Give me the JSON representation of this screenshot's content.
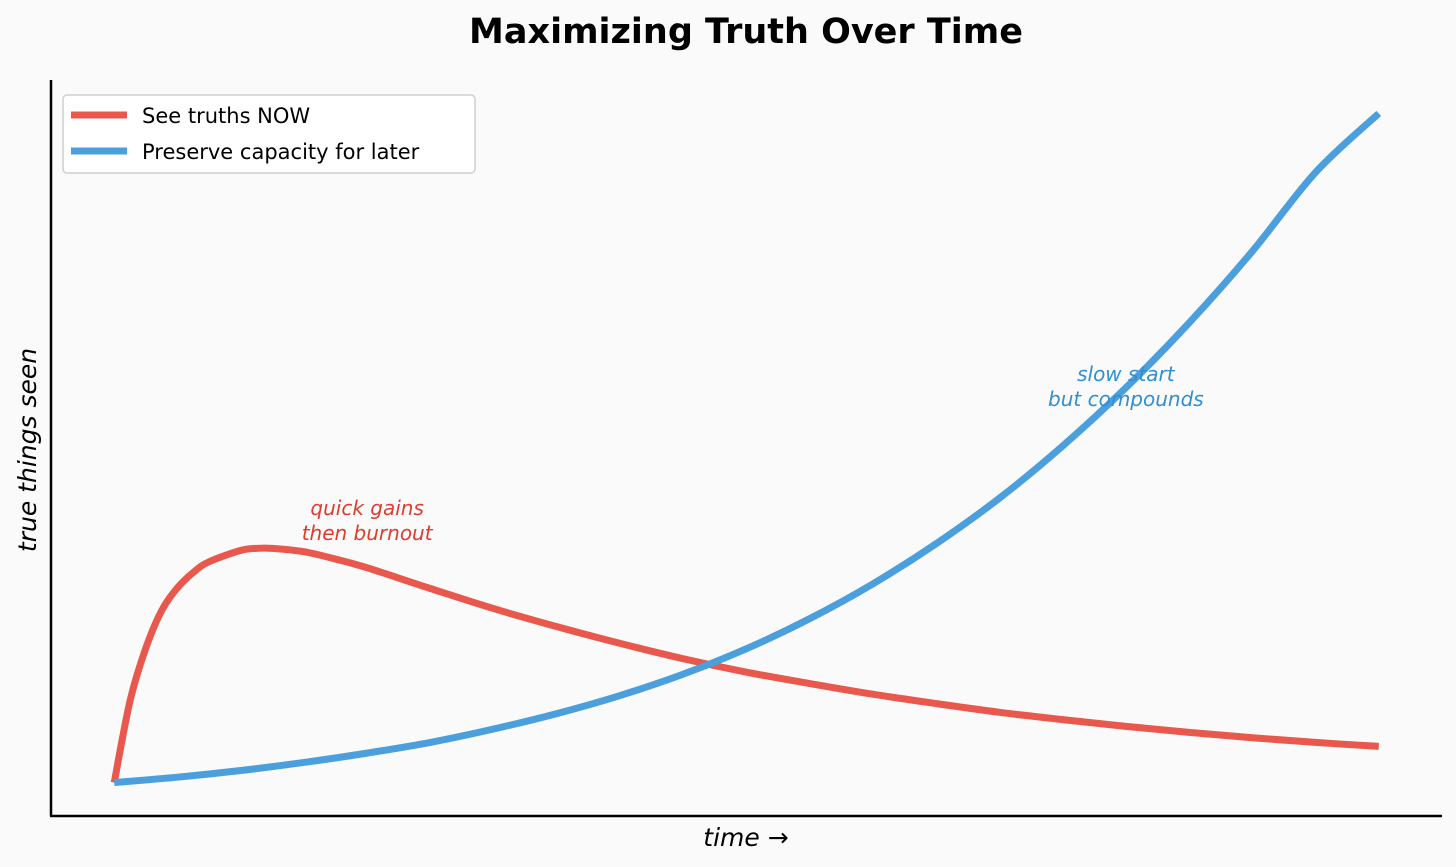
{
  "chart_data": {
    "type": "line",
    "title": "Maximizing Truth Over Time",
    "xlabel": "time →",
    "ylabel": "true things seen",
    "xlim": [
      -0.5,
      10.5
    ],
    "ylim": [
      -0.5,
      10.5
    ],
    "grid": false,
    "ticks": "none",
    "legend_position": "top-left",
    "series": [
      {
        "name": "See truths NOW",
        "color": "#e8584c",
        "x": [
          0,
          0.125,
          0.25,
          0.375,
          0.5,
          0.625,
          0.75,
          1,
          1.125,
          1.25,
          1.5,
          1.75,
          2,
          2.5,
          3,
          3.5,
          4,
          4.5,
          5,
          5.5,
          6,
          6.5,
          7,
          7.5,
          8,
          8.5,
          9,
          9.5,
          10
        ],
        "values": [
          0,
          1.22,
          2.01,
          2.57,
          2.91,
          3.14,
          3.3,
          3.47,
          3.5,
          3.5,
          3.45,
          3.34,
          3.21,
          2.9,
          2.6,
          2.33,
          2.08,
          1.85,
          1.65,
          1.48,
          1.32,
          1.18,
          1.05,
          0.94,
          0.84,
          0.75,
          0.67,
          0.6,
          0.54
        ]
      },
      {
        "name": "Preserve capacity for later",
        "color": "#4a9fdc",
        "x": [
          0,
          0.5,
          1,
          1.5,
          2,
          2.5,
          3,
          3.5,
          4,
          4.5,
          5,
          5.5,
          6,
          6.5,
          7,
          7.5,
          8,
          8.5,
          9,
          9.5,
          10
        ],
        "values": [
          0,
          0.08,
          0.18,
          0.3,
          0.44,
          0.6,
          0.8,
          1.03,
          1.3,
          1.62,
          2.0,
          2.45,
          2.97,
          3.57,
          4.25,
          5.03,
          5.9,
          6.87,
          7.94,
          9.12,
          10.0
        ]
      }
    ],
    "annotations": [
      {
        "lines": [
          "quick gains",
          "then burnout"
        ],
        "x": 2.0,
        "y": 4.0,
        "color": "#e03c2e"
      },
      {
        "lines": [
          "slow start",
          "but compounds"
        ],
        "x": 8.0,
        "y": 6.0,
        "color": "#2f8fd1"
      }
    ]
  }
}
